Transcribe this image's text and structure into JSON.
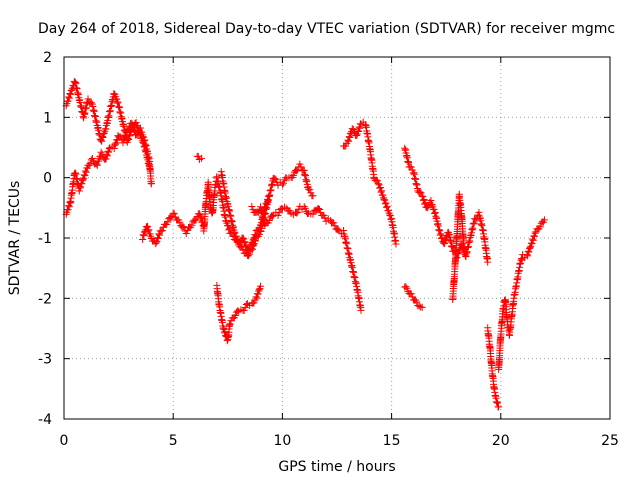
{
  "chart_data": {
    "type": "scatter",
    "title": "Day 264 of 2018, Sidereal Day-to-day VTEC variation (SDTVAR) for receiver mgmc",
    "xlabel": "GPS time / hours",
    "ylabel": "SDTVAR / TECUs",
    "xlim": [
      0,
      25
    ],
    "ylim": [
      -4,
      2
    ],
    "grid": true,
    "marker": "plus",
    "x_ticks": [
      0,
      5,
      10,
      15,
      20,
      25
    ],
    "y_ticks": [
      -4,
      -3,
      -2,
      -1,
      0,
      1,
      2
    ],
    "x_tick_labels": [
      "0",
      "5",
      "10",
      "15",
      "20",
      "25"
    ],
    "y_tick_labels": [
      "-4",
      "-3",
      "-2",
      "-1",
      "0",
      "1",
      "2"
    ],
    "series": [
      {
        "name": "SDTVAR",
        "color": "#ff0000",
        "segments": [
          {
            "x": [
              0.1,
              0.3,
              0.5,
              0.7,
              0.9,
              1.1,
              1.3,
              1.5,
              1.7,
              1.9,
              2.1,
              2.3,
              2.5,
              2.7,
              2.9,
              3.1,
              3.3,
              3.5,
              3.7,
              3.9
            ],
            "y": [
              1.2,
              1.4,
              1.6,
              1.3,
              1.0,
              1.3,
              1.2,
              0.9,
              0.6,
              0.8,
              1.1,
              1.4,
              1.2,
              0.9,
              0.6,
              0.8,
              0.9,
              0.7,
              0.5,
              0.2
            ]
          },
          {
            "x": [
              0.1,
              0.3,
              0.5,
              0.7,
              0.9,
              1.1,
              1.3,
              1.5,
              1.7,
              1.9,
              2.1,
              2.3,
              2.5,
              2.7,
              2.9,
              3.1,
              3.3,
              3.5,
              3.7,
              3.9,
              4.0
            ],
            "y": [
              -0.6,
              -0.4,
              0.1,
              -0.2,
              0.0,
              0.2,
              0.3,
              0.2,
              0.4,
              0.3,
              0.5,
              0.5,
              0.7,
              0.6,
              0.8,
              0.9,
              0.7,
              0.8,
              0.6,
              0.3,
              -0.1
            ]
          },
          {
            "x": [
              3.6,
              3.8,
              4.0,
              4.2,
              4.4,
              4.6,
              4.8,
              5.0,
              5.2,
              5.4,
              5.6,
              5.8,
              6.0,
              6.2,
              6.4
            ],
            "y": [
              -1.0,
              -0.8,
              -1.0,
              -1.1,
              -0.9,
              -0.8,
              -0.7,
              -0.6,
              -0.7,
              -0.8,
              -0.9,
              -0.8,
              -0.7,
              -0.6,
              -0.8
            ]
          },
          {
            "x": [
              6.1,
              6.2,
              6.3
            ],
            "y": [
              0.35,
              0.3,
              0.32
            ]
          },
          {
            "x": [
              6.4,
              6.5,
              6.6,
              6.7,
              6.8,
              6.9,
              7.0,
              7.2,
              7.4,
              7.6,
              7.8,
              8.0,
              8.2,
              8.4,
              8.6,
              8.8,
              9.0,
              9.2,
              9.4
            ],
            "y": [
              -0.9,
              -0.4,
              -0.1,
              -0.5,
              -0.6,
              -0.2,
              0.0,
              -0.3,
              -0.7,
              -0.9,
              -1.0,
              -1.1,
              -1.2,
              -1.3,
              -1.2,
              -1.0,
              -0.9,
              -0.6,
              -0.3
            ]
          },
          {
            "x": [
              7.0,
              7.1,
              7.2,
              7.3,
              7.4,
              7.5,
              7.6,
              7.8,
              8.0,
              8.2,
              8.4,
              8.6,
              8.8,
              9.0
            ],
            "y": [
              -1.8,
              -2.1,
              -2.3,
              -2.5,
              -2.6,
              -2.7,
              -2.4,
              -2.3,
              -2.2,
              -2.2,
              -2.1,
              -2.1,
              -2.0,
              -1.8
            ]
          },
          {
            "x": [
              7.2,
              7.4,
              7.6,
              7.8,
              8.0,
              8.2,
              8.4,
              8.6,
              8.8,
              9.0,
              9.2,
              9.4,
              9.6,
              9.8,
              10.0,
              10.2,
              10.4,
              10.6,
              10.8,
              11.0,
              11.2,
              11.4
            ],
            "y": [
              0.1,
              -0.3,
              -0.6,
              -0.9,
              -1.1,
              -1.0,
              -1.2,
              -1.1,
              -0.9,
              -0.8,
              -0.5,
              -0.3,
              0.0,
              -0.1,
              -0.1,
              0.0,
              0.0,
              0.1,
              0.2,
              0.1,
              -0.2,
              -0.3
            ]
          },
          {
            "x": [
              8.6,
              8.8,
              9.0,
              9.2,
              9.4,
              9.6,
              9.8,
              10.0,
              10.2,
              10.4,
              10.6,
              10.8,
              11.0,
              11.2,
              11.4,
              11.6,
              11.8,
              12.0,
              12.2,
              12.4,
              12.6,
              12.8,
              13.0,
              13.2,
              13.4,
              13.6
            ],
            "y": [
              -0.5,
              -0.6,
              -0.5,
              -0.8,
              -0.7,
              -0.6,
              -0.6,
              -0.5,
              -0.5,
              -0.6,
              -0.6,
              -0.5,
              -0.5,
              -0.6,
              -0.6,
              -0.5,
              -0.6,
              -0.7,
              -0.7,
              -0.8,
              -0.9,
              -0.9,
              -1.2,
              -1.5,
              -1.8,
              -2.2
            ]
          },
          {
            "x": [
              12.8,
              13.0,
              13.2,
              13.4,
              13.6,
              13.8,
              14.0,
              14.2,
              14.4,
              14.6,
              14.8,
              15.0,
              15.2
            ],
            "y": [
              0.5,
              0.6,
              0.8,
              0.7,
              0.9,
              0.9,
              0.5,
              0.0,
              -0.1,
              -0.3,
              -0.5,
              -0.7,
              -1.1
            ]
          },
          {
            "x": [
              15.6,
              15.8,
              16.0,
              16.2,
              16.4,
              16.6,
              16.8,
              17.0,
              17.2,
              17.4,
              17.6,
              17.8,
              18.0,
              18.2,
              18.4,
              18.6,
              18.8,
              19.0,
              19.2,
              19.4
            ],
            "y": [
              0.5,
              0.2,
              0.1,
              -0.2,
              -0.3,
              -0.5,
              -0.4,
              -0.6,
              -0.9,
              -1.1,
              -0.9,
              -1.2,
              -1.3,
              -1.1,
              -1.3,
              -1.0,
              -0.7,
              -0.6,
              -0.9,
              -1.4
            ]
          },
          {
            "x": [
              15.6,
              15.8,
              16.0,
              16.2,
              16.4
            ],
            "y": [
              -1.8,
              -1.9,
              -2.0,
              -2.1,
              -2.15
            ]
          },
          {
            "x": [
              17.8,
              17.9,
              18.0,
              18.1,
              18.2,
              18.3,
              18.4
            ],
            "y": [
              -2.0,
              -1.5,
              -0.9,
              -0.3,
              -0.6,
              -1.1,
              -1.3
            ]
          },
          {
            "x": [
              19.4,
              19.5,
              19.6,
              19.7,
              19.8,
              19.9
            ],
            "y": [
              -2.5,
              -2.8,
              -3.2,
              -3.5,
              -3.7,
              -3.8
            ]
          },
          {
            "x": [
              19.9,
              20.0,
              20.1,
              20.2,
              20.3,
              20.4,
              20.5,
              20.6,
              20.7,
              20.8,
              20.9,
              21.0,
              21.2,
              21.4,
              21.6,
              21.8,
              22.0
            ],
            "y": [
              -3.2,
              -2.6,
              -2.2,
              -2.0,
              -2.4,
              -2.6,
              -2.3,
              -2.0,
              -1.8,
              -1.6,
              -1.4,
              -1.3,
              -1.3,
              -1.1,
              -0.9,
              -0.8,
              -0.7
            ]
          }
        ]
      }
    ]
  }
}
